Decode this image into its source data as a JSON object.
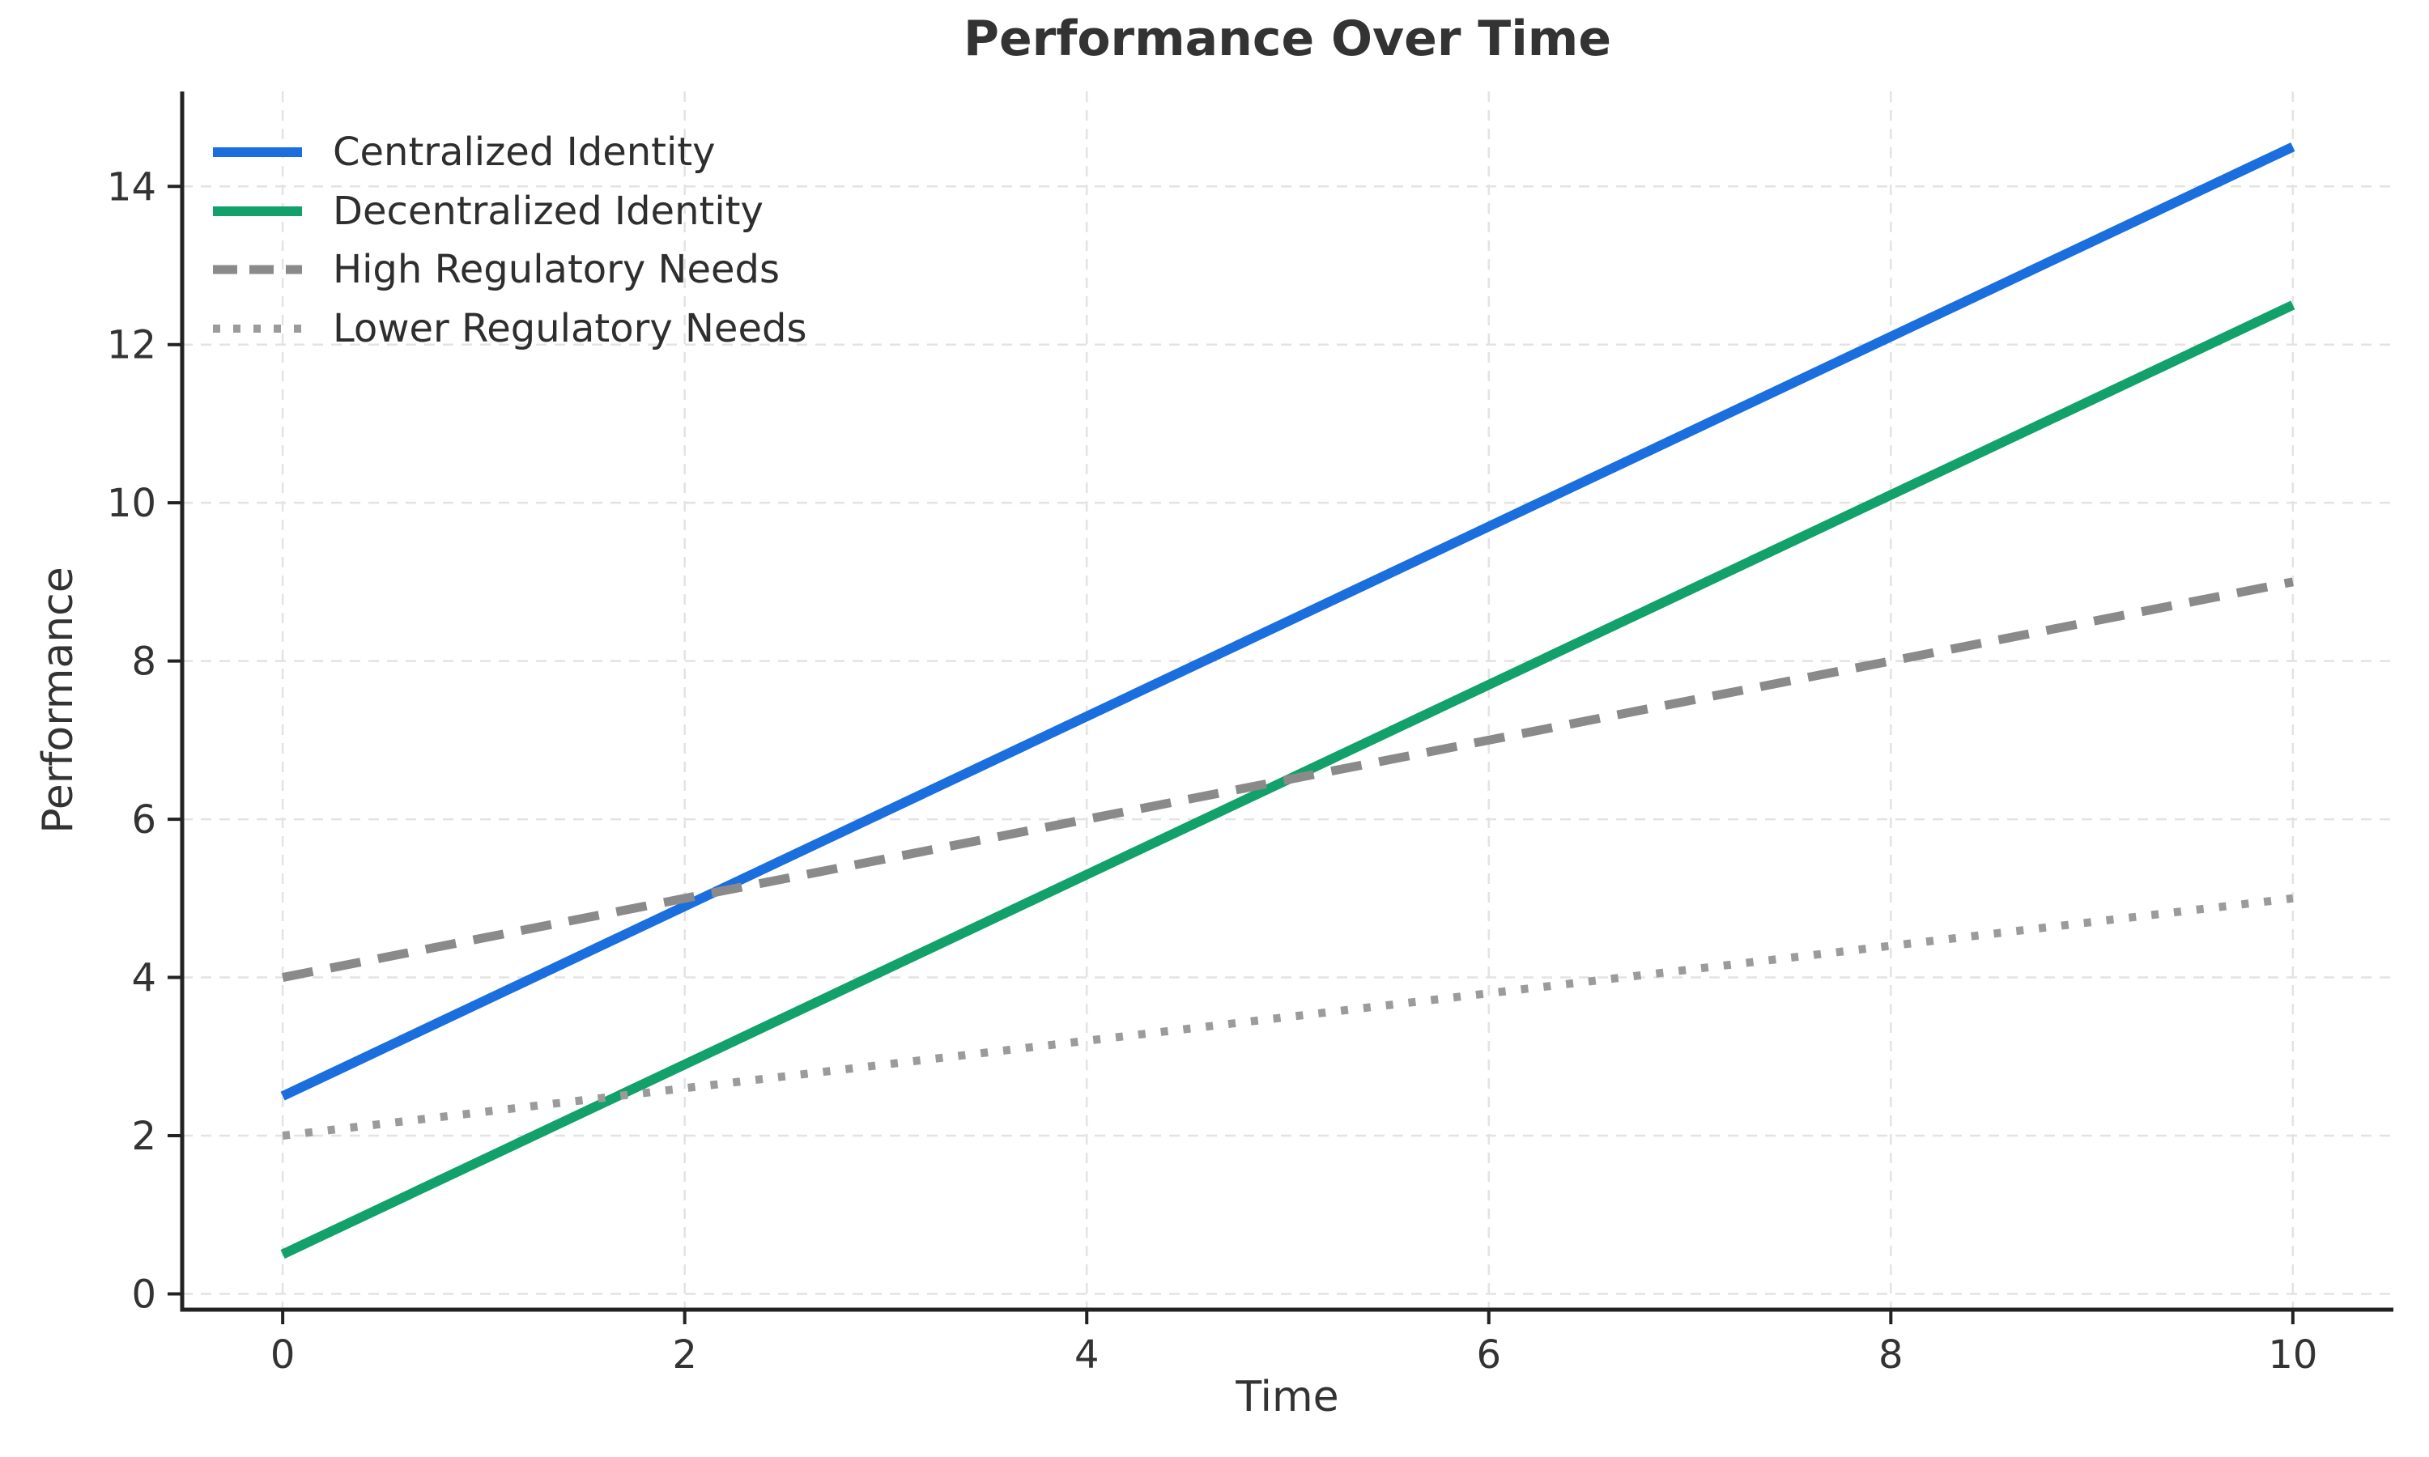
{
  "chart_data": {
    "type": "line",
    "title": "Performance Over Time",
    "xlabel": "Time",
    "ylabel": "Performance",
    "x": [
      0,
      2,
      4,
      6,
      8,
      10
    ],
    "series": [
      {
        "name": "Centralized Identity",
        "values": [
          2.5,
          4.9,
          7.3,
          9.7,
          12.1,
          14.5
        ],
        "color": "#1b6ede",
        "style": "solid"
      },
      {
        "name": "Decentralized Identity",
        "values": [
          0.5,
          2.9,
          5.3,
          7.7,
          10.1,
          12.5
        ],
        "color": "#12a06b",
        "style": "solid"
      },
      {
        "name": "High Regulatory Needs",
        "values": [
          4.0,
          5.0,
          6.0,
          7.0,
          8.0,
          9.0
        ],
        "color": "#8a8a8a",
        "style": "dashed"
      },
      {
        "name": "Lower Regulatory Needs",
        "values": [
          2.0,
          2.6,
          3.2,
          3.8,
          4.4,
          5.0
        ],
        "color": "#9b9b9b",
        "style": "dotted"
      }
    ],
    "xticks": [
      0,
      2,
      4,
      6,
      8,
      10
    ],
    "yticks": [
      0,
      2,
      4,
      6,
      8,
      10,
      12,
      14
    ],
    "xlim": [
      -0.5,
      10.5
    ],
    "ylim": [
      -0.2,
      15.2
    ],
    "grid": true,
    "legend_position": "upper left",
    "colors": {
      "background": "#ffffff",
      "grid": "#e3e3e3",
      "axis": "#222222",
      "tick_text": "#333333",
      "title_text": "#333333",
      "legend_text": "#2e2e2e"
    }
  }
}
